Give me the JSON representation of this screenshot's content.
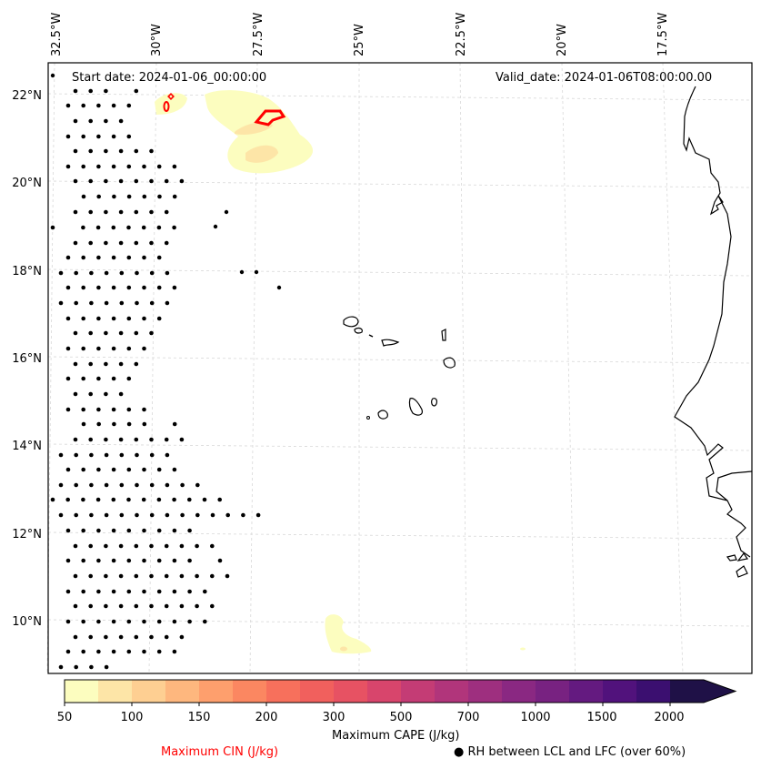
{
  "map": {
    "projection_extent": {
      "lon_min": -33.0,
      "lon_max": -16.0,
      "lat_min": 9.0,
      "lat_max": 22.8
    },
    "lon_ticks": [
      "32.5°W",
      "30°W",
      "27.5°W",
      "25°W",
      "22.5°W",
      "20°W",
      "17.5°W"
    ],
    "lat_ticks": [
      "22°N",
      "20°N",
      "18°N",
      "16°N",
      "14°N",
      "12°N",
      "10°N"
    ],
    "gridlines": true,
    "start_date": "Start date: 2024-01-06_00:00:00",
    "valid_date": "Valid_date: 2024-01-06T08:00:00.00",
    "features": [
      "Cape Verde islands coastline",
      "West Africa coastline (Mauritania, Senegal, Gambia, Guinea-Bissau, Guinea)"
    ],
    "cape_regions": [
      {
        "name": "northern-cape-area",
        "approx_lon": -27.5,
        "approx_lat": 21.0,
        "max_level": 100
      },
      {
        "name": "northwest-cape-patch",
        "approx_lon": -29.5,
        "approx_lat": 21.8,
        "max_level": 50
      },
      {
        "name": "southern-cape-patch",
        "approx_lon": -25.5,
        "approx_lat": 9.6,
        "max_level": 100
      }
    ],
    "cin_contours": [
      {
        "name": "cin-contour-north",
        "approx_lon": -27.4,
        "approx_lat": 21.5
      },
      {
        "name": "cin-contour-northwest",
        "approx_lon": -29.6,
        "approx_lat": 21.7
      }
    ],
    "rh_stipple_region": "western edge, approx 33°W–29°W, 9°N–22.5°N"
  },
  "colorbar": {
    "label": "Maximum CAPE (J/kg)",
    "tick_labels": [
      "50",
      "100",
      "150",
      "200",
      "300",
      "500",
      "700",
      "1000",
      "1500",
      "2000"
    ],
    "levels": [
      50,
      75,
      100,
      125,
      150,
      175,
      200,
      250,
      300,
      400,
      500,
      600,
      700,
      800,
      1000,
      1250,
      1500,
      1750,
      2000
    ],
    "colors": [
      "#fcfdbf",
      "#fde5a7",
      "#fecf92",
      "#feb77e",
      "#fe9f6d",
      "#fb8761",
      "#f7705c",
      "#f1605d",
      "#e75263",
      "#d8456c",
      "#c43c75",
      "#b1357b",
      "#9e2f7f",
      "#8a2882",
      "#782281",
      "#641a80",
      "#51127c",
      "#3b0f70",
      "#1f1147"
    ],
    "extend": "max"
  },
  "legend": {
    "cin_label": "Maximum CIN (J/kg)",
    "cin_color": "#ff0000",
    "rh_label": "● RH between LCL and LFC (over 60%)"
  }
}
